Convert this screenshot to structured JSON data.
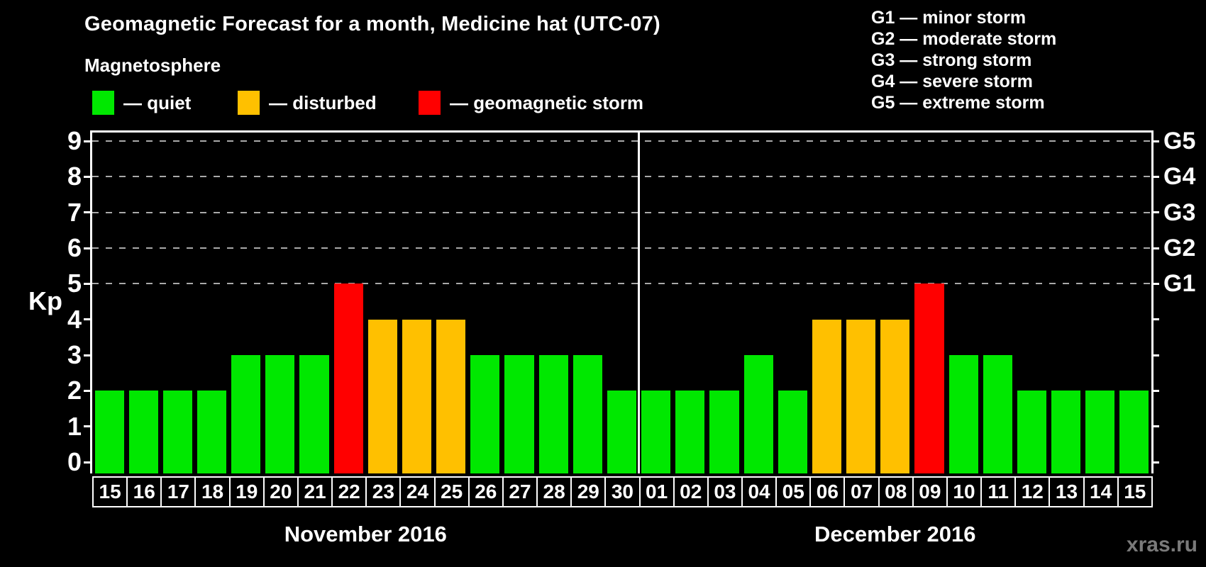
{
  "title": "Geomagnetic Forecast for a month, Medicine hat (UTC-07)",
  "magnetosphere_legend": {
    "heading": "Magnetosphere",
    "items": [
      {
        "key": "quiet",
        "label": "— quiet",
        "color": "#00E800"
      },
      {
        "key": "disturbed",
        "label": "— disturbed",
        "color": "#FFC000"
      },
      {
        "key": "storm",
        "label": "— geomagnetic storm",
        "color": "#FF0000"
      }
    ]
  },
  "g_scale_legend": {
    "items": [
      "G1 — minor storm",
      "G2 — moderate storm",
      "G3 — strong storm",
      "G4 — severe storm",
      "G5 — extreme storm"
    ]
  },
  "watermark": "xras.ru",
  "chart_data": {
    "type": "bar",
    "title": "Geomagnetic Forecast for a month, Medicine hat (UTC-07)",
    "ylabel": "Kp",
    "ylim": [
      0,
      9
    ],
    "yticks": [
      0,
      1,
      2,
      3,
      4,
      5,
      6,
      7,
      8,
      9
    ],
    "gridlines_at": [
      5,
      6,
      7,
      8,
      9
    ],
    "grid_style": "dashed gray horizontal lines at storm levels only",
    "legend_position": "top",
    "right_axis": [
      {
        "kp": 5,
        "label": "G1"
      },
      {
        "kp": 6,
        "label": "G2"
      },
      {
        "kp": 7,
        "label": "G3"
      },
      {
        "kp": 8,
        "label": "G4"
      },
      {
        "kp": 9,
        "label": "G5"
      }
    ],
    "months": [
      {
        "label": "November 2016",
        "bars": [
          {
            "day": "15",
            "kp": 2,
            "status": "quiet"
          },
          {
            "day": "16",
            "kp": 2,
            "status": "quiet"
          },
          {
            "day": "17",
            "kp": 2,
            "status": "quiet"
          },
          {
            "day": "18",
            "kp": 2,
            "status": "quiet"
          },
          {
            "day": "19",
            "kp": 3,
            "status": "quiet"
          },
          {
            "day": "20",
            "kp": 3,
            "status": "quiet"
          },
          {
            "day": "21",
            "kp": 3,
            "status": "quiet"
          },
          {
            "day": "22",
            "kp": 5,
            "status": "storm"
          },
          {
            "day": "23",
            "kp": 4,
            "status": "disturbed"
          },
          {
            "day": "24",
            "kp": 4,
            "status": "disturbed"
          },
          {
            "day": "25",
            "kp": 4,
            "status": "disturbed"
          },
          {
            "day": "26",
            "kp": 3,
            "status": "quiet"
          },
          {
            "day": "27",
            "kp": 3,
            "status": "quiet"
          },
          {
            "day": "28",
            "kp": 3,
            "status": "quiet"
          },
          {
            "day": "29",
            "kp": 3,
            "status": "quiet"
          },
          {
            "day": "30",
            "kp": 2,
            "status": "quiet"
          }
        ]
      },
      {
        "label": "December 2016",
        "bars": [
          {
            "day": "01",
            "kp": 2,
            "status": "quiet"
          },
          {
            "day": "02",
            "kp": 2,
            "status": "quiet"
          },
          {
            "day": "03",
            "kp": 2,
            "status": "quiet"
          },
          {
            "day": "04",
            "kp": 3,
            "status": "quiet"
          },
          {
            "day": "05",
            "kp": 2,
            "status": "quiet"
          },
          {
            "day": "06",
            "kp": 4,
            "status": "disturbed"
          },
          {
            "day": "07",
            "kp": 4,
            "status": "disturbed"
          },
          {
            "day": "08",
            "kp": 4,
            "status": "disturbed"
          },
          {
            "day": "09",
            "kp": 5,
            "status": "storm"
          },
          {
            "day": "10",
            "kp": 3,
            "status": "quiet"
          },
          {
            "day": "11",
            "kp": 3,
            "status": "quiet"
          },
          {
            "day": "12",
            "kp": 2,
            "status": "quiet"
          },
          {
            "day": "13",
            "kp": 2,
            "status": "quiet"
          },
          {
            "day": "14",
            "kp": 2,
            "status": "quiet"
          },
          {
            "day": "15",
            "kp": 2,
            "status": "quiet"
          }
        ]
      }
    ]
  }
}
